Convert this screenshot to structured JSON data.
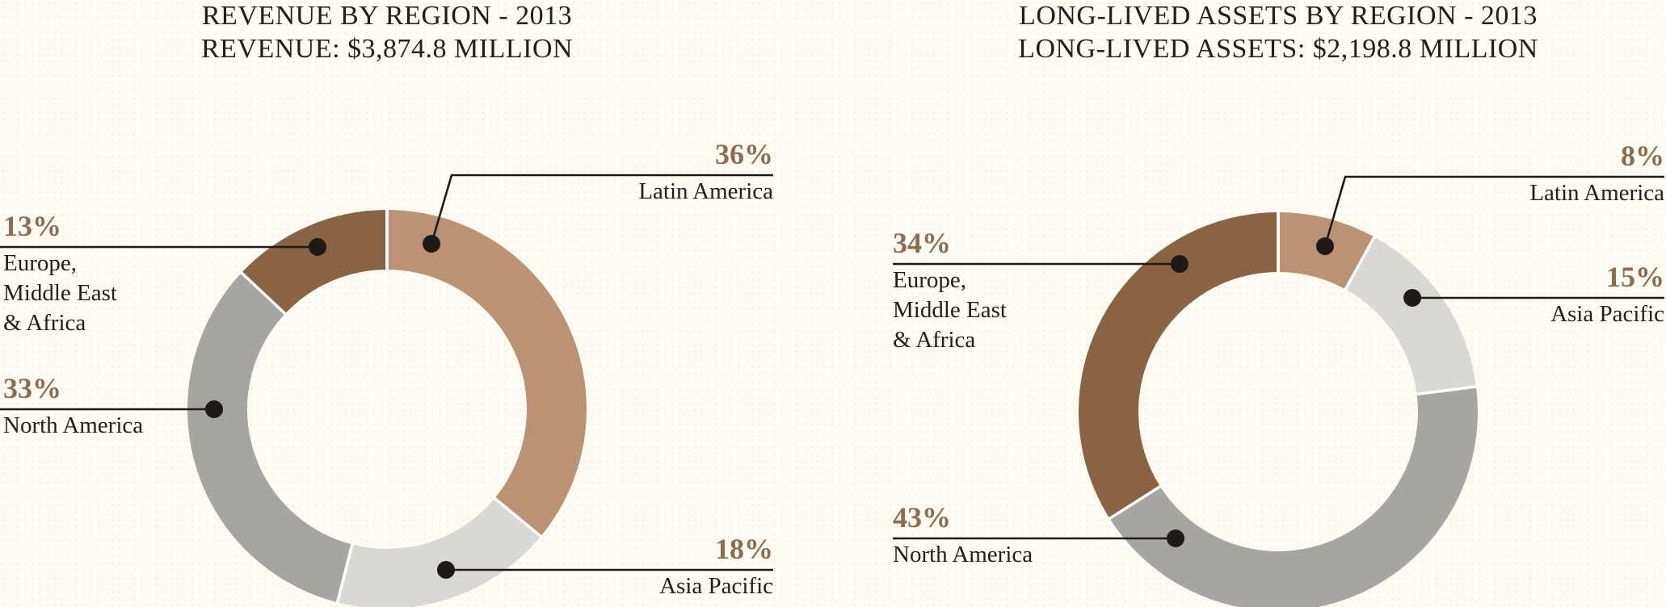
{
  "page": {
    "background_color": "#fdfcf4",
    "text_color": "#221e1b",
    "accent_percent_color": "#8e6c50",
    "leader_line_color": "#1d1a17",
    "divider_color": "#ffffff"
  },
  "chart_data": [
    {
      "type": "pie",
      "variant": "donut",
      "title": "REVENUE BY REGION - 2013",
      "subtitle": "REVENUE: $3,874.8 MILLION",
      "year": "2013",
      "total_label": "$3,874.8 MILLION",
      "direction": "clockwise",
      "start_angle_deg": 0,
      "legend_position": "callout-labels",
      "segments": [
        {
          "name": "Latin America",
          "name_lines": [
            "Latin America"
          ],
          "value": 36,
          "pct_label": "36%",
          "color": "#bb9273"
        },
        {
          "name": "Asia Pacific",
          "name_lines": [
            "Asia Pacific"
          ],
          "value": 18,
          "pct_label": "18%",
          "color": "#d9d8d4"
        },
        {
          "name": "North America",
          "name_lines": [
            "North America"
          ],
          "value": 33,
          "pct_label": "33%",
          "color": "#a7a5a2"
        },
        {
          "name": "Europe, Middle East & Africa",
          "name_lines": [
            "Europe,",
            "Middle East",
            "& Africa"
          ],
          "value": 13,
          "pct_label": "13%",
          "color": "#8a6342"
        }
      ]
    },
    {
      "type": "pie",
      "variant": "donut",
      "title": "LONG-LIVED ASSETS BY REGION - 2013",
      "subtitle": "LONG-LIVED ASSETS: $2,198.8 MILLION",
      "year": "2013",
      "total_label": "$2,198.8 MILLION",
      "direction": "clockwise",
      "start_angle_deg": 0,
      "legend_position": "callout-labels",
      "segments": [
        {
          "name": "Latin America",
          "name_lines": [
            "Latin America"
          ],
          "value": 8,
          "pct_label": "8%",
          "color": "#bb9273"
        },
        {
          "name": "Asia Pacific",
          "name_lines": [
            "Asia Pacific"
          ],
          "value": 15,
          "pct_label": "15%",
          "color": "#d9d8d4"
        },
        {
          "name": "North America",
          "name_lines": [
            "North America"
          ],
          "value": 43,
          "pct_label": "43%",
          "color": "#a7a5a2"
        },
        {
          "name": "Europe, Middle East & Africa",
          "name_lines": [
            "Europe,",
            "Middle East",
            "& Africa"
          ],
          "value": 34,
          "pct_label": "34%",
          "color": "#8a6342"
        }
      ]
    }
  ]
}
